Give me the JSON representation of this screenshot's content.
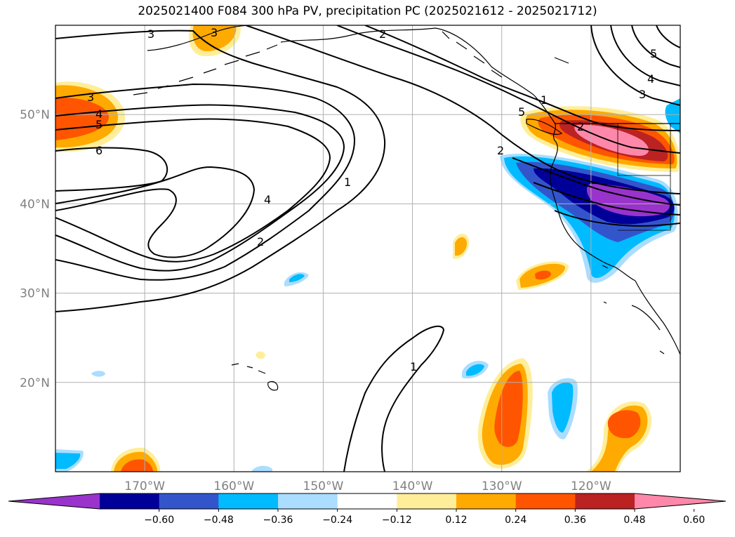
{
  "title": "2025021400 F084 300 hPa PV, precipitation PC (2025021612 - 2025021712)",
  "map": {
    "lon_range": [
      -180,
      -110
    ],
    "lat_range": [
      10,
      60
    ],
    "lat_ticks": [
      {
        "value": 20,
        "label": "20°N"
      },
      {
        "value": 30,
        "label": "30°N"
      },
      {
        "value": 40,
        "label": "40°N"
      },
      {
        "value": 50,
        "label": "50°N"
      }
    ],
    "lon_ticks": [
      {
        "value": -170,
        "label": "170°W"
      },
      {
        "value": -160,
        "label": "160°W"
      },
      {
        "value": -150,
        "label": "150°W"
      },
      {
        "value": -140,
        "label": "140°W"
      },
      {
        "value": -130,
        "label": "130°W"
      },
      {
        "value": -120,
        "label": "120°W"
      }
    ],
    "grid": true,
    "contour_labels": [
      "3",
      "3",
      "3",
      "4",
      "5",
      "6",
      "4",
      "2",
      "1",
      "1",
      "2",
      "2",
      "5",
      "2",
      "3",
      "4",
      "5",
      "1"
    ]
  },
  "colorbar": {
    "extend": "both",
    "labels": [
      "−0.60",
      "−0.48",
      "−0.36",
      "−0.24",
      "−0.12",
      "0.12",
      "0.24",
      "0.36",
      "0.48",
      "0.60"
    ],
    "colors": [
      "#9933cc",
      "#000099",
      "#3355cc",
      "#00bbff",
      "#aaddff",
      "#ffffff",
      "#ffee99",
      "#ffaa00",
      "#ff5500",
      "#bb2222",
      "#ff88aa"
    ]
  },
  "colors": {
    "neg_deep": "#9933cc",
    "neg_navy": "#000099",
    "neg_mid": "#3355cc",
    "neg_cyan": "#00bbff",
    "neg_light": "#aaddff",
    "pos_light": "#ffee99",
    "pos_orange": "#ffaa00",
    "pos_red": "#ff5500",
    "pos_dark": "#bb2222",
    "pos_pink": "#ff88aa",
    "grid": "#b0b0b0"
  }
}
